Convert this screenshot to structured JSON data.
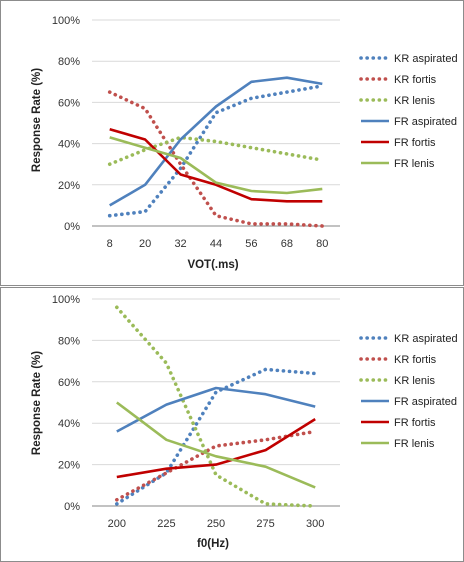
{
  "chart_data": [
    {
      "type": "line",
      "title": "",
      "xlabel": "VOT(.ms)",
      "ylabel": "Response Rate (%)",
      "categories": [
        "8",
        "20",
        "32",
        "44",
        "56",
        "68",
        "80"
      ],
      "yticks": [
        "0%",
        "20%",
        "40%",
        "60%",
        "80%",
        "100%"
      ],
      "ylim": [
        0,
        100
      ],
      "grid": true,
      "legend_position": "right",
      "series": [
        {
          "name": "KR aspirated",
          "color": "#4f81bd",
          "style": "dotted",
          "values": [
            5,
            7,
            28,
            55,
            62,
            65,
            68
          ]
        },
        {
          "name": "KR fortis",
          "color": "#c0504d",
          "style": "dotted",
          "values": [
            65,
            57,
            30,
            5,
            1,
            1,
            0
          ]
        },
        {
          "name": "KR lenis",
          "color": "#9bbb59",
          "style": "dotted",
          "values": [
            30,
            37,
            43,
            41,
            38,
            35,
            32
          ]
        },
        {
          "name": "FR aspirated",
          "color": "#4f81bd",
          "style": "solid",
          "values": [
            10,
            20,
            42,
            58,
            70,
            72,
            69
          ]
        },
        {
          "name": "FR fortis",
          "color": "#c00000",
          "style": "solid",
          "values": [
            47,
            42,
            25,
            20,
            13,
            12,
            12
          ]
        },
        {
          "name": "FR lenis",
          "color": "#9bbb59",
          "style": "solid",
          "values": [
            43,
            38,
            33,
            21,
            17,
            16,
            18
          ]
        }
      ]
    },
    {
      "type": "line",
      "title": "",
      "xlabel": "f0(Hz)",
      "ylabel": "Response Rate (%)",
      "categories": [
        "200",
        "225",
        "250",
        "275",
        "300"
      ],
      "yticks": [
        "0%",
        "20%",
        "40%",
        "60%",
        "80%",
        "100%"
      ],
      "ylim": [
        0,
        100
      ],
      "grid": true,
      "legend_position": "right",
      "series": [
        {
          "name": "KR aspirated",
          "color": "#4f81bd",
          "style": "dotted",
          "values": [
            1,
            16,
            55,
            66,
            64
          ]
        },
        {
          "name": "KR fortis",
          "color": "#c0504d",
          "style": "dotted",
          "values": [
            3,
            16,
            29,
            32,
            36
          ]
        },
        {
          "name": "KR lenis",
          "color": "#9bbb59",
          "style": "dotted",
          "values": [
            96,
            69,
            15,
            1,
            0
          ]
        },
        {
          "name": "FR aspirated",
          "color": "#4f81bd",
          "style": "solid",
          "values": [
            36,
            49,
            57,
            54,
            48
          ]
        },
        {
          "name": "FR fortis",
          "color": "#c00000",
          "style": "solid",
          "values": [
            14,
            18,
            20,
            27,
            42
          ]
        },
        {
          "name": "FR lenis",
          "color": "#9bbb59",
          "style": "solid",
          "values": [
            50,
            32,
            24,
            19,
            9
          ]
        }
      ]
    }
  ]
}
